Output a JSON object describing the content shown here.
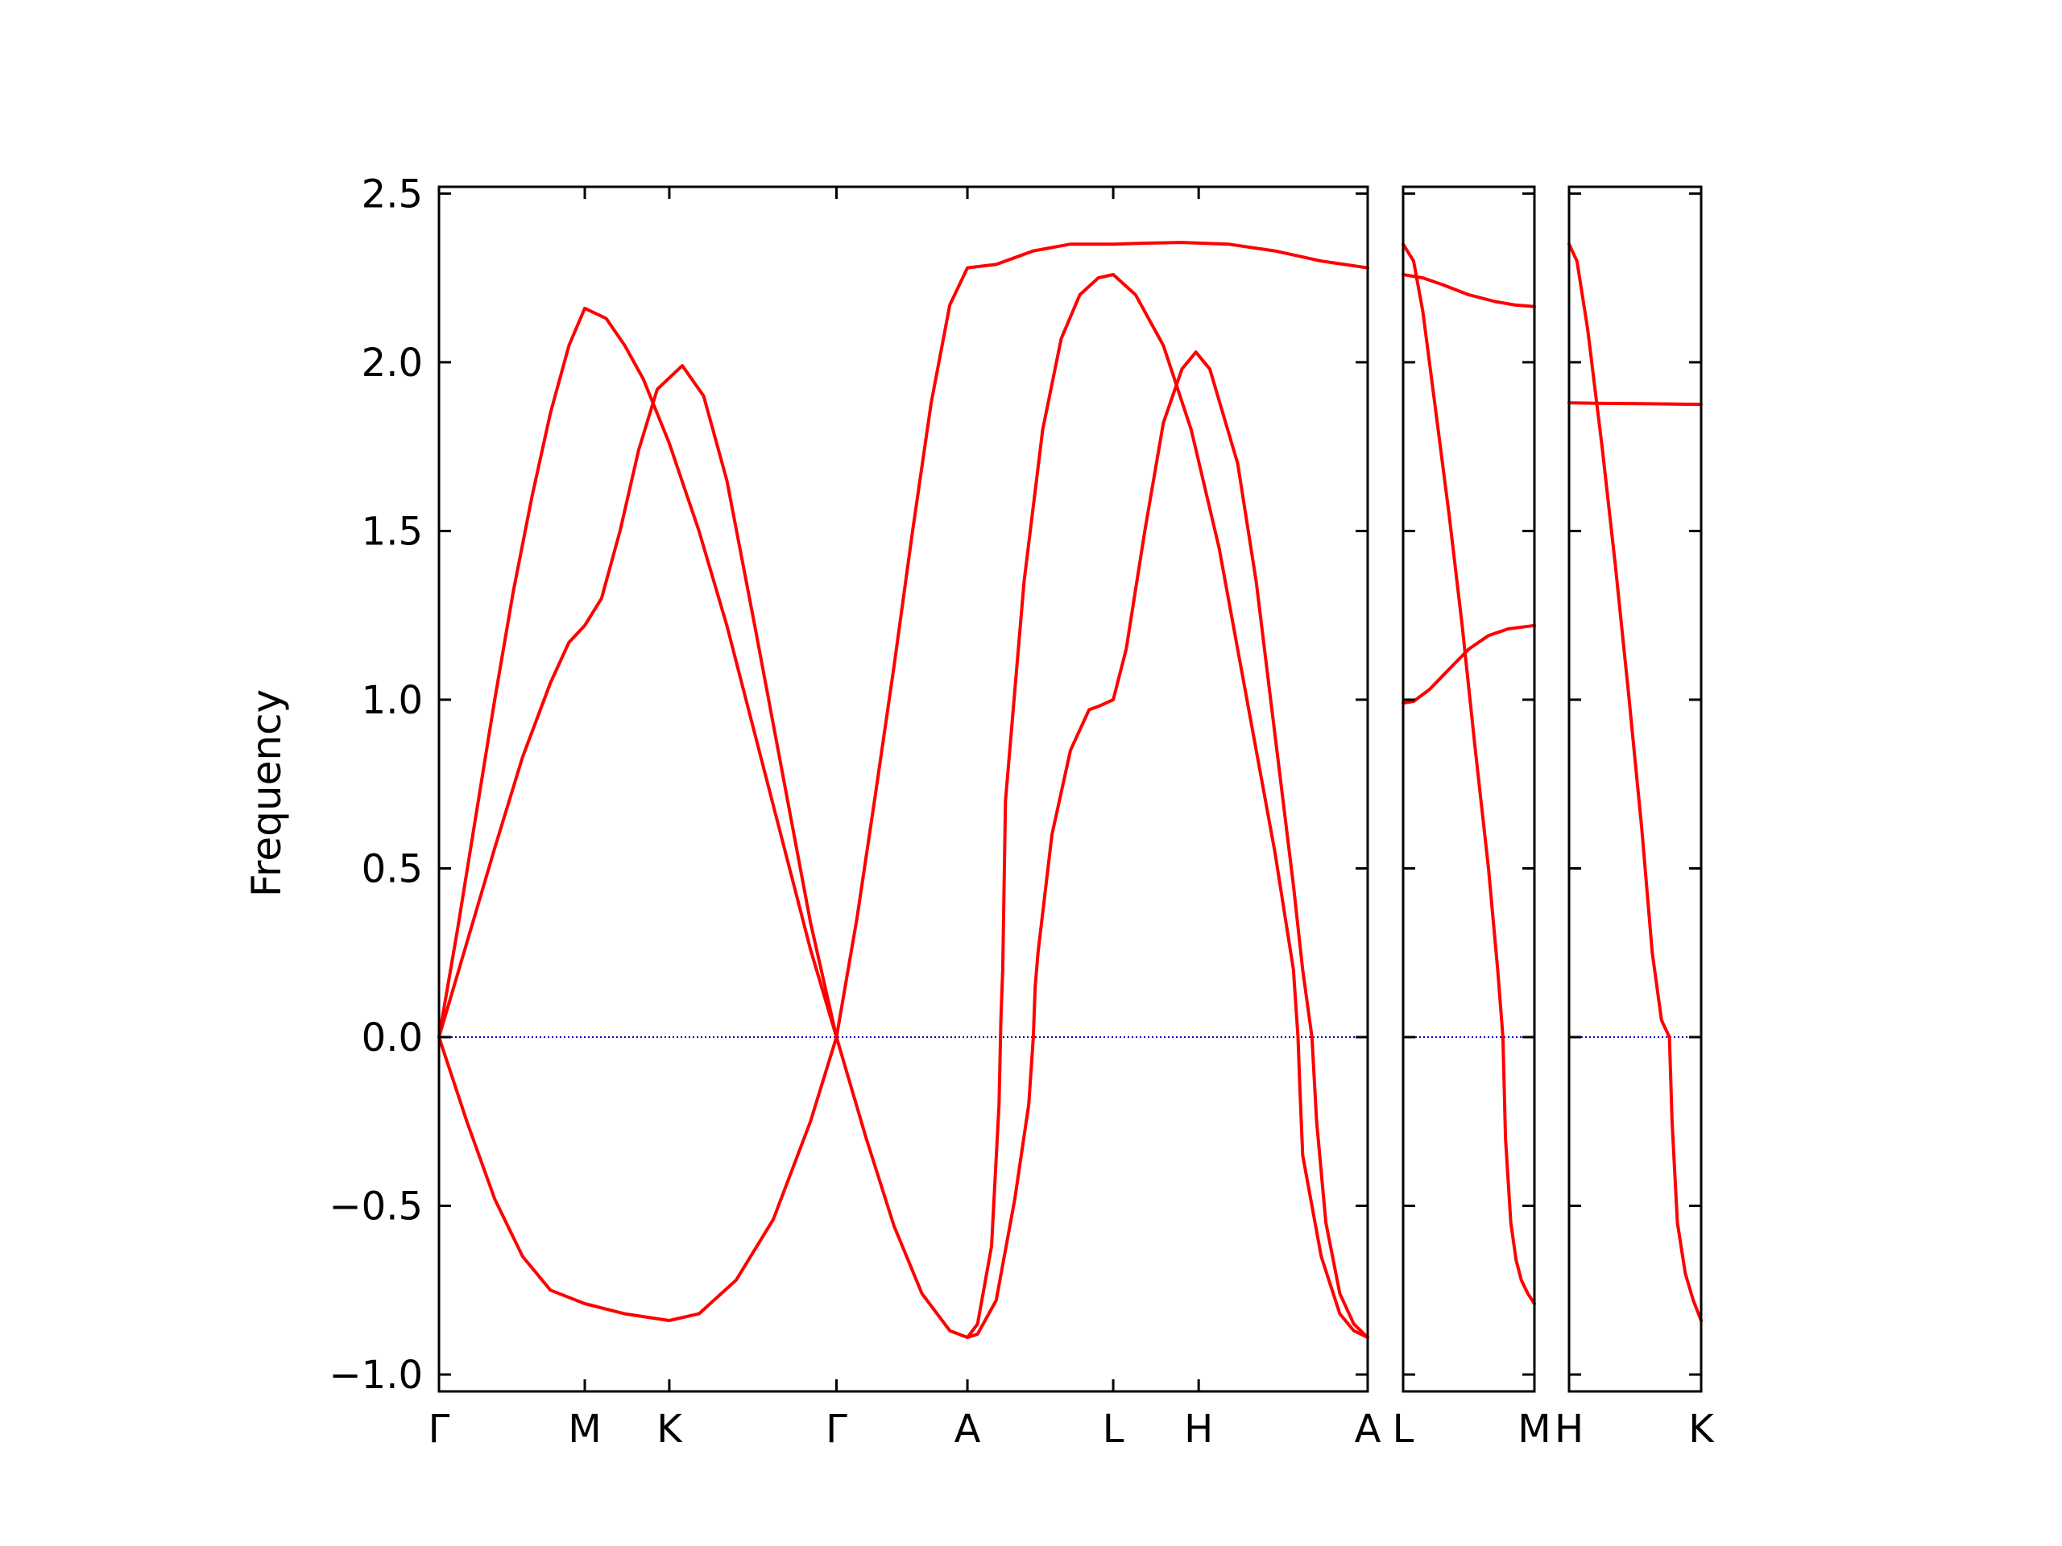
{
  "chart_data": {
    "type": "line",
    "ylabel": "Frequency",
    "ylim": [
      -1.05,
      2.52
    ],
    "yticks": [
      -1.0,
      -0.5,
      0.0,
      0.5,
      1.0,
      1.5,
      2.0,
      2.5
    ],
    "ytick_labels": [
      "−1.0",
      "−0.5",
      "0.0",
      "0.5",
      "1.0",
      "1.5",
      "2.0",
      "2.5"
    ],
    "line_color": "#ff0000",
    "zero_line_color": "#0000cc",
    "panels": [
      {
        "xlim": [
          0,
          1.0
        ],
        "xticks": [
          {
            "x": 0.0,
            "label": "Γ"
          },
          {
            "x": 0.157,
            "label": "M"
          },
          {
            "x": 0.248,
            "label": "K"
          },
          {
            "x": 0.428,
            "label": "Γ"
          },
          {
            "x": 0.569,
            "label": "A"
          },
          {
            "x": 0.726,
            "label": "L"
          },
          {
            "x": 0.818,
            "label": "H"
          },
          {
            "x": 1.0,
            "label": "A"
          }
        ],
        "series": [
          {
            "points": [
              [
                0.0,
                0.0
              ],
              [
                0.02,
                0.32
              ],
              [
                0.04,
                0.66
              ],
              [
                0.06,
                1.0
              ],
              [
                0.08,
                1.32
              ],
              [
                0.1,
                1.6
              ],
              [
                0.12,
                1.85
              ],
              [
                0.14,
                2.05
              ],
              [
                0.157,
                2.16
              ],
              [
                0.18,
                2.13
              ],
              [
                0.2,
                2.05
              ],
              [
                0.22,
                1.95
              ],
              [
                0.248,
                1.76
              ],
              [
                0.28,
                1.5
              ],
              [
                0.31,
                1.22
              ],
              [
                0.34,
                0.9
              ],
              [
                0.37,
                0.58
              ],
              [
                0.4,
                0.26
              ],
              [
                0.428,
                0.0
              ]
            ]
          },
          {
            "points": [
              [
                0.0,
                0.0
              ],
              [
                0.03,
                0.28
              ],
              [
                0.06,
                0.56
              ],
              [
                0.09,
                0.83
              ],
              [
                0.12,
                1.05
              ],
              [
                0.14,
                1.17
              ],
              [
                0.157,
                1.22
              ],
              [
                0.175,
                1.3
              ],
              [
                0.195,
                1.5
              ],
              [
                0.215,
                1.74
              ],
              [
                0.235,
                1.92
              ],
              [
                0.262,
                1.99
              ],
              [
                0.285,
                1.9
              ],
              [
                0.31,
                1.65
              ],
              [
                0.34,
                1.22
              ],
              [
                0.37,
                0.78
              ],
              [
                0.4,
                0.34
              ],
              [
                0.428,
                0.0
              ]
            ]
          },
          {
            "points": [
              [
                0.0,
                0.0
              ],
              [
                0.03,
                -0.25
              ],
              [
                0.06,
                -0.48
              ],
              [
                0.09,
                -0.65
              ],
              [
                0.12,
                -0.75
              ],
              [
                0.157,
                -0.79
              ],
              [
                0.2,
                -0.82
              ],
              [
                0.248,
                -0.84
              ],
              [
                0.28,
                -0.82
              ],
              [
                0.32,
                -0.72
              ],
              [
                0.36,
                -0.54
              ],
              [
                0.4,
                -0.25
              ],
              [
                0.428,
                0.0
              ]
            ]
          },
          {
            "points": [
              [
                0.428,
                0.0
              ],
              [
                0.45,
                0.35
              ],
              [
                0.47,
                0.72
              ],
              [
                0.49,
                1.1
              ],
              [
                0.51,
                1.5
              ],
              [
                0.53,
                1.88
              ],
              [
                0.55,
                2.17
              ],
              [
                0.569,
                2.28
              ],
              [
                0.6,
                2.29
              ],
              [
                0.64,
                2.33
              ],
              [
                0.68,
                2.35
              ],
              [
                0.726,
                2.35
              ],
              [
                0.76,
                2.353
              ],
              [
                0.8,
                2.355
              ],
              [
                0.85,
                2.35
              ],
              [
                0.9,
                2.33
              ],
              [
                0.95,
                2.3
              ],
              [
                1.0,
                2.28
              ]
            ]
          },
          {
            "points": [
              [
                0.428,
                0.0
              ],
              [
                0.46,
                -0.3
              ],
              [
                0.49,
                -0.56
              ],
              [
                0.52,
                -0.76
              ],
              [
                0.55,
                -0.87
              ],
              [
                0.569,
                -0.89
              ],
              [
                0.58,
                -0.85
              ],
              [
                0.595,
                -0.62
              ],
              [
                0.603,
                -0.2
              ],
              [
                0.605,
                0.05
              ],
              [
                0.607,
                0.2
              ],
              [
                0.61,
                0.7
              ],
              [
                0.63,
                1.35
              ],
              [
                0.65,
                1.8
              ],
              [
                0.67,
                2.07
              ],
              [
                0.69,
                2.2
              ],
              [
                0.71,
                2.25
              ],
              [
                0.726,
                2.26
              ],
              [
                0.75,
                2.2
              ],
              [
                0.78,
                2.05
              ],
              [
                0.81,
                1.8
              ],
              [
                0.84,
                1.45
              ],
              [
                0.87,
                1.0
              ],
              [
                0.9,
                0.55
              ],
              [
                0.92,
                0.2
              ],
              [
                0.925,
                0.0
              ],
              [
                0.927,
                -0.15
              ],
              [
                0.93,
                -0.35
              ],
              [
                0.95,
                -0.65
              ],
              [
                0.97,
                -0.82
              ],
              [
                0.985,
                -0.87
              ],
              [
                1.0,
                -0.89
              ]
            ]
          },
          {
            "points": [
              [
                0.569,
                -0.89
              ],
              [
                0.58,
                -0.88
              ],
              [
                0.6,
                -0.78
              ],
              [
                0.62,
                -0.48
              ],
              [
                0.635,
                -0.2
              ],
              [
                0.64,
                0.0
              ],
              [
                0.642,
                0.15
              ],
              [
                0.645,
                0.25
              ],
              [
                0.66,
                0.6
              ],
              [
                0.68,
                0.85
              ],
              [
                0.7,
                0.97
              ],
              [
                0.71,
                0.98
              ],
              [
                0.726,
                1.0
              ],
              [
                0.74,
                1.15
              ],
              [
                0.76,
                1.5
              ],
              [
                0.78,
                1.82
              ],
              [
                0.8,
                1.98
              ],
              [
                0.815,
                2.03
              ],
              [
                0.83,
                1.98
              ],
              [
                0.86,
                1.7
              ],
              [
                0.88,
                1.35
              ],
              [
                0.9,
                0.9
              ],
              [
                0.92,
                0.45
              ],
              [
                0.93,
                0.2
              ],
              [
                0.94,
                0.0
              ],
              [
                0.945,
                -0.25
              ],
              [
                0.955,
                -0.55
              ],
              [
                0.97,
                -0.76
              ],
              [
                0.985,
                -0.85
              ],
              [
                1.0,
                -0.89
              ]
            ]
          }
        ]
      },
      {
        "xlim": [
          0,
          1.0
        ],
        "xticks": [
          {
            "x": 0.0,
            "label": "L"
          },
          {
            "x": 1.0,
            "label": "M"
          }
        ],
        "series": [
          {
            "points": [
              [
                0.0,
                2.26
              ],
              [
                0.15,
                2.25
              ],
              [
                0.3,
                2.23
              ],
              [
                0.5,
                2.2
              ],
              [
                0.7,
                2.18
              ],
              [
                0.85,
                2.17
              ],
              [
                1.0,
                2.165
              ]
            ]
          },
          {
            "points": [
              [
                0.0,
                0.99
              ],
              [
                0.08,
                0.995
              ],
              [
                0.2,
                1.03
              ],
              [
                0.35,
                1.09
              ],
              [
                0.5,
                1.15
              ],
              [
                0.65,
                1.19
              ],
              [
                0.8,
                1.21
              ],
              [
                1.0,
                1.22
              ]
            ]
          },
          {
            "points": [
              [
                0.0,
                2.35
              ],
              [
                0.08,
                2.3
              ],
              [
                0.15,
                2.15
              ],
              [
                0.25,
                1.85
              ],
              [
                0.35,
                1.55
              ],
              [
                0.45,
                1.22
              ],
              [
                0.55,
                0.85
              ],
              [
                0.65,
                0.5
              ],
              [
                0.72,
                0.2
              ],
              [
                0.76,
                0.0
              ],
              [
                0.78,
                -0.3
              ],
              [
                0.82,
                -0.55
              ],
              [
                0.86,
                -0.66
              ],
              [
                0.9,
                -0.72
              ],
              [
                0.95,
                -0.76
              ],
              [
                1.0,
                -0.79
              ]
            ]
          }
        ]
      },
      {
        "xlim": [
          0,
          1.0
        ],
        "xticks": [
          {
            "x": 0.0,
            "label": "H"
          },
          {
            "x": 1.0,
            "label": "K"
          }
        ],
        "series": [
          {
            "points": [
              [
                0.0,
                1.88
              ],
              [
                0.3,
                1.878
              ],
              [
                0.6,
                1.877
              ],
              [
                1.0,
                1.875
              ]
            ]
          },
          {
            "points": [
              [
                0.0,
                2.35
              ],
              [
                0.06,
                2.3
              ],
              [
                0.14,
                2.1
              ],
              [
                0.25,
                1.75
              ],
              [
                0.35,
                1.4
              ],
              [
                0.45,
                1.02
              ],
              [
                0.55,
                0.62
              ],
              [
                0.63,
                0.25
              ],
              [
                0.7,
                0.05
              ],
              [
                0.76,
                0.0
              ],
              [
                0.78,
                -0.25
              ],
              [
                0.82,
                -0.55
              ],
              [
                0.88,
                -0.7
              ],
              [
                0.94,
                -0.78
              ],
              [
                1.0,
                -0.84
              ]
            ]
          }
        ]
      }
    ]
  }
}
